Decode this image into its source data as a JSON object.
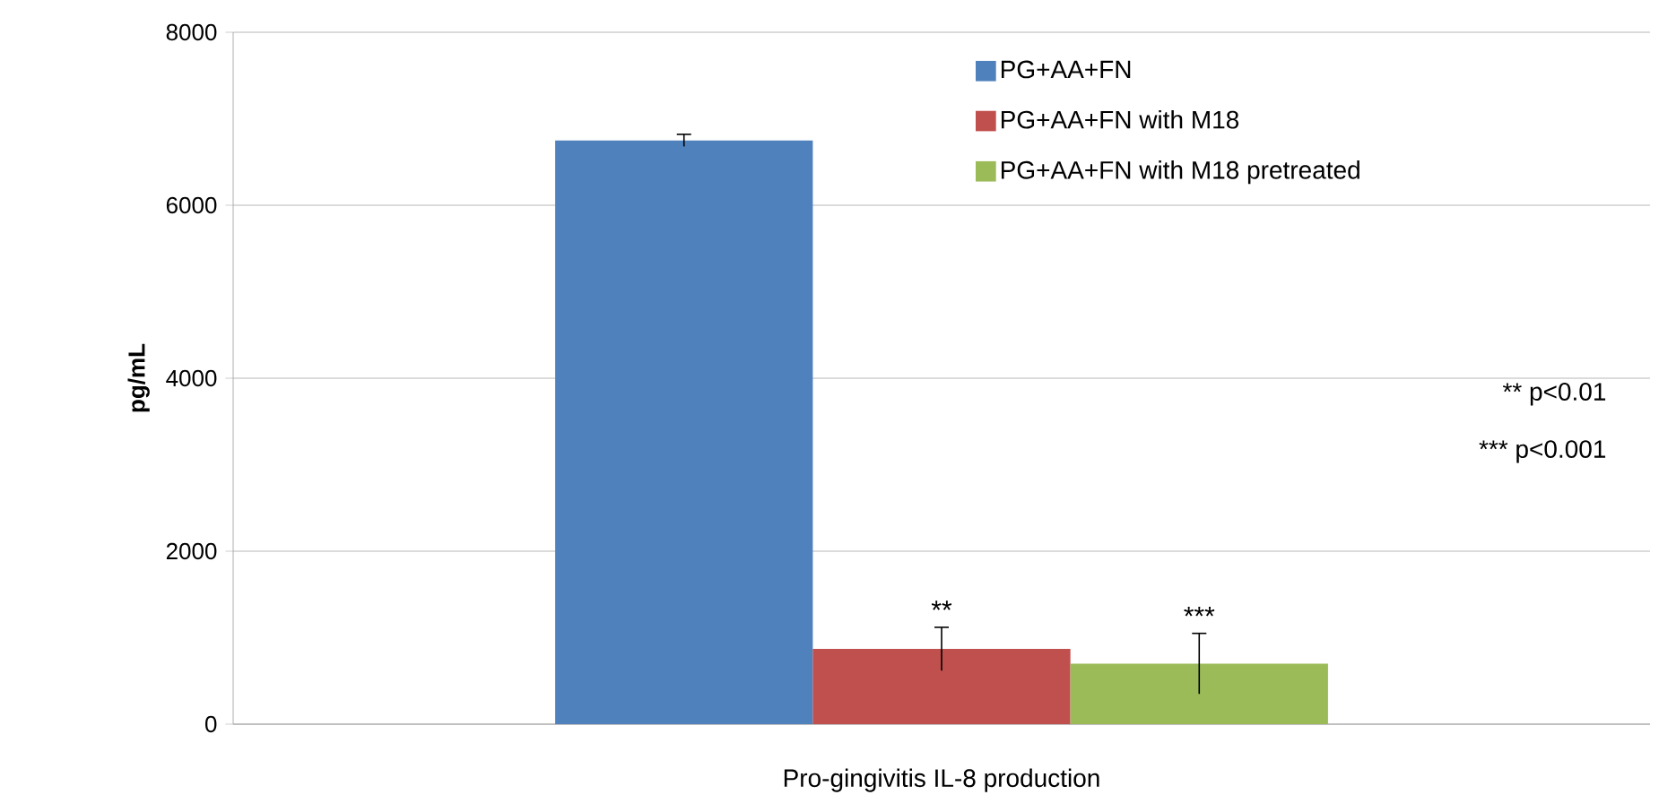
{
  "chart_data": {
    "type": "bar",
    "categories": [
      "Pro-gingivitis IL-8 production"
    ],
    "ylabel": "pg/mL",
    "ylim": [
      0,
      8000
    ],
    "yticks": [
      0,
      2000,
      4000,
      6000,
      8000
    ],
    "grid": "y",
    "legend": "top right",
    "series": [
      {
        "name": "PG+AA+FN",
        "color": "#4f81bd",
        "values": [
          6750
        ],
        "errors": [
          70
        ]
      },
      {
        "name": "PG+AA+FN with M18",
        "color": "#c0504d",
        "values": [
          870
        ],
        "errors": [
          250
        ]
      },
      {
        "name": "PG+AA+FN with M18 pretreated",
        "color": "#9bbb59",
        "values": [
          700
        ],
        "errors": [
          350
        ]
      }
    ],
    "annotations": [
      "**",
      "***",
      "** p<0.01",
      "*** p<0.001"
    ]
  }
}
